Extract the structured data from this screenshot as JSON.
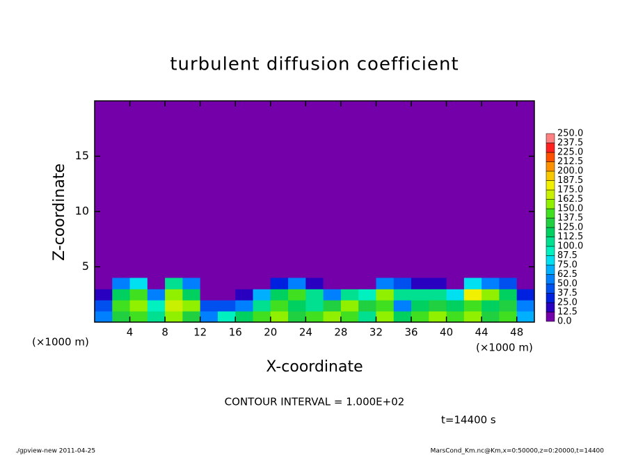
{
  "chart_data": {
    "type": "heatmap",
    "title": "turbulent diffusion coefficient",
    "xlabel": "X-coordinate",
    "ylabel": "Z-coordinate",
    "xunit": "(×1000 m)",
    "yunit": "(×1000 m)",
    "annotation": "CONTOUR INTERVAL = 1.000E+02",
    "time_label": "t=14400 s",
    "footer_left": "./gpview-new   2011-04-25",
    "footer_right": "MarsCond_Km.nc@Km,x=0:50000,z=0:20000,t=14400",
    "xlim": [
      0,
      50
    ],
    "ylim": [
      0,
      20
    ],
    "xticks": [
      4,
      8,
      12,
      16,
      20,
      24,
      28,
      32,
      36,
      40,
      44,
      48
    ],
    "yticks": [
      5,
      10,
      15
    ],
    "x": [
      1,
      3,
      5,
      7,
      9,
      11,
      13,
      15,
      17,
      19,
      21,
      23,
      25,
      27,
      29,
      31,
      33,
      35,
      37,
      39,
      41,
      43,
      45,
      47,
      49
    ],
    "y": [
      0.5,
      1.5,
      2.5,
      3.5
    ],
    "values": [
      [
        50,
        130,
        140,
        100,
        150,
        130,
        60,
        90,
        120,
        140,
        150,
        130,
        140,
        150,
        140,
        110,
        150,
        120,
        140,
        150,
        140,
        150,
        130,
        140,
        70
      ],
      [
        40,
        140,
        160,
        90,
        170,
        150,
        40,
        40,
        60,
        110,
        140,
        120,
        110,
        130,
        150,
        130,
        140,
        60,
        120,
        130,
        120,
        140,
        120,
        130,
        50
      ],
      [
        20,
        120,
        140,
        60,
        160,
        120,
        10,
        10,
        20,
        70,
        120,
        140,
        100,
        50,
        110,
        90,
        160,
        110,
        100,
        110,
        80,
        180,
        150,
        120,
        30
      ],
      [
        0,
        60,
        80,
        10,
        110,
        60,
        0,
        0,
        5,
        10,
        30,
        60,
        20,
        5,
        10,
        10,
        60,
        40,
        20,
        20,
        10,
        80,
        60,
        40,
        5
      ]
    ],
    "levels": [
      0,
      12.5,
      25,
      37.5,
      50,
      62.5,
      75,
      87.5,
      100,
      112.5,
      125,
      137.5,
      150,
      162.5,
      175,
      187.5,
      200,
      212.5,
      225,
      237.5,
      250
    ],
    "level_labels": [
      "0.0",
      "12.5",
      "25.0",
      "37.5",
      "50.0",
      "62.5",
      "75.0",
      "87.5",
      "100.0",
      "112.5",
      "125.0",
      "137.5",
      "150.0",
      "162.5",
      "175.0",
      "187.5",
      "200.0",
      "212.5",
      "225.0",
      "237.5",
      "250.0"
    ],
    "colors": [
      "#7400aa",
      "#2a00c0",
      "#0020e0",
      "#0050f0",
      "#0080ff",
      "#00b0ff",
      "#00e0f0",
      "#00f0c0",
      "#00e090",
      "#00d060",
      "#20d040",
      "#40e020",
      "#90f000",
      "#c8f000",
      "#f0f000",
      "#f8c800",
      "#ff9000",
      "#ff5000",
      "#ff2020",
      "#ff8080"
    ]
  }
}
